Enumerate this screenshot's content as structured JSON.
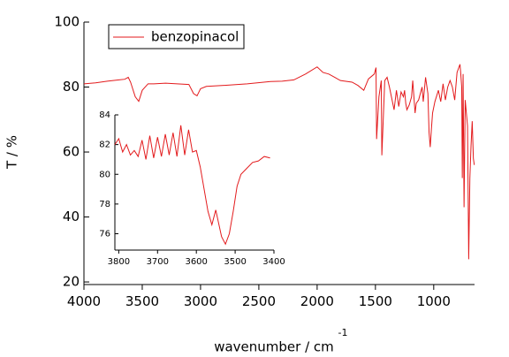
{
  "chart_data": [
    {
      "type": "line",
      "y_label": "T / %",
      "x_label": "wavenumber / cm",
      "x_label_sup": "-1",
      "xlim": [
        4000,
        650
      ],
      "ylim": [
        19.2,
        100
      ],
      "xticks": [
        4000,
        3500,
        3000,
        2500,
        2000,
        1500,
        1000
      ],
      "yticks": [
        20,
        40,
        60,
        80,
        100
      ],
      "legend": "top-left",
      "x": [
        4000,
        3900,
        3800,
        3750,
        3700,
        3650,
        3620,
        3600,
        3560,
        3530,
        3500,
        3450,
        3400,
        3300,
        3200,
        3100,
        3060,
        3030,
        3000,
        2950,
        2800,
        2600,
        2400,
        2300,
        2200,
        2100,
        2000,
        1950,
        1900,
        1850,
        1800,
        1700,
        1650,
        1600,
        1560,
        1510,
        1495,
        1490,
        1470,
        1450,
        1445,
        1420,
        1400,
        1380,
        1340,
        1320,
        1300,
        1280,
        1260,
        1250,
        1240,
        1230,
        1210,
        1190,
        1180,
        1160,
        1150,
        1130,
        1100,
        1090,
        1070,
        1050,
        1040,
        1030,
        1020,
        1010,
        990,
        960,
        940,
        920,
        900,
        880,
        860,
        840,
        820,
        800,
        775,
        770,
        760,
        755,
        750,
        748,
        740,
        730,
        720,
        710,
        700,
        690,
        680,
        670,
        660,
        652
      ],
      "series": [
        {
          "name": "benzopinacol",
          "color": "#e31a1c",
          "values": [
            81,
            81.3,
            81.8,
            82,
            82.2,
            82.4,
            83,
            81.5,
            77,
            75.6,
            79,
            81,
            81,
            81.2,
            81,
            80.8,
            78,
            77.3,
            79.5,
            80.2,
            80.5,
            81,
            81.7,
            81.8,
            82.2,
            84,
            86.2,
            84.5,
            84,
            83,
            82,
            81.5,
            80.5,
            79,
            82.5,
            84,
            86,
            64,
            77,
            82,
            59,
            82,
            83,
            80,
            73,
            79,
            74,
            78.5,
            77,
            79,
            75,
            73,
            74.5,
            77,
            82,
            72,
            75,
            76,
            80,
            75.5,
            83,
            78,
            66,
            61.5,
            67,
            72,
            75.5,
            79,
            75.5,
            81,
            76,
            80,
            82,
            80,
            76,
            84.5,
            87,
            85,
            80,
            52,
            74,
            84,
            43,
            76,
            72,
            68,
            27,
            52,
            62,
            69.5,
            58,
            56
          ]
        }
      ]
    },
    {
      "type": "line",
      "xlim": [
        3810,
        3400
      ],
      "ylim": [
        74.9,
        84
      ],
      "xticks": [
        3800,
        3700,
        3600,
        3500,
        3400
      ],
      "yticks": [
        76,
        78,
        80,
        82,
        84
      ],
      "x": [
        3810,
        3800,
        3790,
        3780,
        3770,
        3760,
        3750,
        3740,
        3730,
        3720,
        3710,
        3700,
        3690,
        3680,
        3670,
        3660,
        3650,
        3640,
        3630,
        3620,
        3610,
        3600,
        3590,
        3580,
        3570,
        3560,
        3550,
        3545,
        3535,
        3525,
        3515,
        3505,
        3495,
        3485,
        3470,
        3455,
        3440,
        3425,
        3410
      ],
      "series": [
        {
          "color": "#e31a1c",
          "values": [
            82,
            82.4,
            81.5,
            82,
            81.3,
            81.6,
            81.2,
            82.3,
            81,
            82.6,
            81.1,
            82.5,
            81.2,
            82.7,
            81.3,
            82.8,
            81.2,
            83.3,
            81.3,
            83,
            81.5,
            81.6,
            80.5,
            79,
            77.5,
            76.6,
            77.6,
            77,
            75.8,
            75.3,
            76,
            77.5,
            79.2,
            80,
            80.4,
            80.8,
            80.9,
            81.2,
            81.1
          ]
        }
      ]
    }
  ]
}
